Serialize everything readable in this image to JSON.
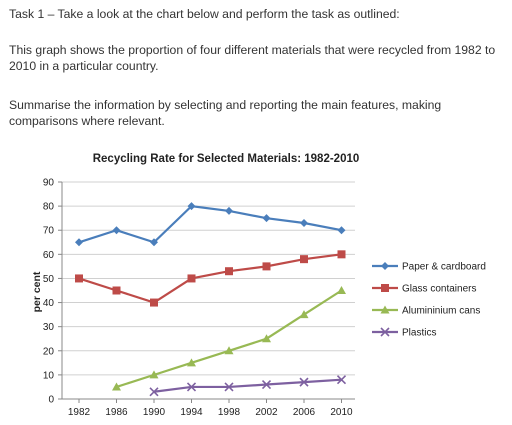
{
  "task": {
    "heading": "Task 1 – Take a look at the chart below and perform the task as outlined:",
    "description": "This graph shows the proportion of four different materials that were recycled from 1982 to 2010 in a particular country.",
    "instruction": "Summarise the information by selecting and reporting the main features, making comparisons where relevant."
  },
  "chart_data": {
    "type": "line",
    "title": "Recycling Rate for Selected Materials: 1982-2010",
    "xlabel": "",
    "ylabel": "per cent",
    "x": [
      "1982",
      "1986",
      "1990",
      "1994",
      "1998",
      "2002",
      "2006",
      "2010"
    ],
    "ylim": [
      0,
      90
    ],
    "yticks": [
      "0",
      "10",
      "20",
      "30",
      "40",
      "50",
      "60",
      "70",
      "80",
      "90"
    ],
    "grid": true,
    "legend_position": "right",
    "series": [
      {
        "name": "Paper & cardboard",
        "color": "#4a7ebb",
        "marker": "diamond",
        "values": [
          65,
          70,
          65,
          80,
          78,
          75,
          73,
          70
        ]
      },
      {
        "name": "Glass containers",
        "color": "#be4b48",
        "marker": "square",
        "values": [
          50,
          45,
          40,
          50,
          53,
          55,
          58,
          60
        ]
      },
      {
        "name": "Alumininium cans",
        "color": "#98b954",
        "marker": "triangle",
        "values": [
          null,
          5,
          10,
          15,
          20,
          25,
          35,
          45
        ]
      },
      {
        "name": "Plastics",
        "color": "#7d60a0",
        "marker": "cross",
        "values": [
          null,
          null,
          3,
          5,
          5,
          6,
          7,
          8
        ]
      }
    ]
  }
}
